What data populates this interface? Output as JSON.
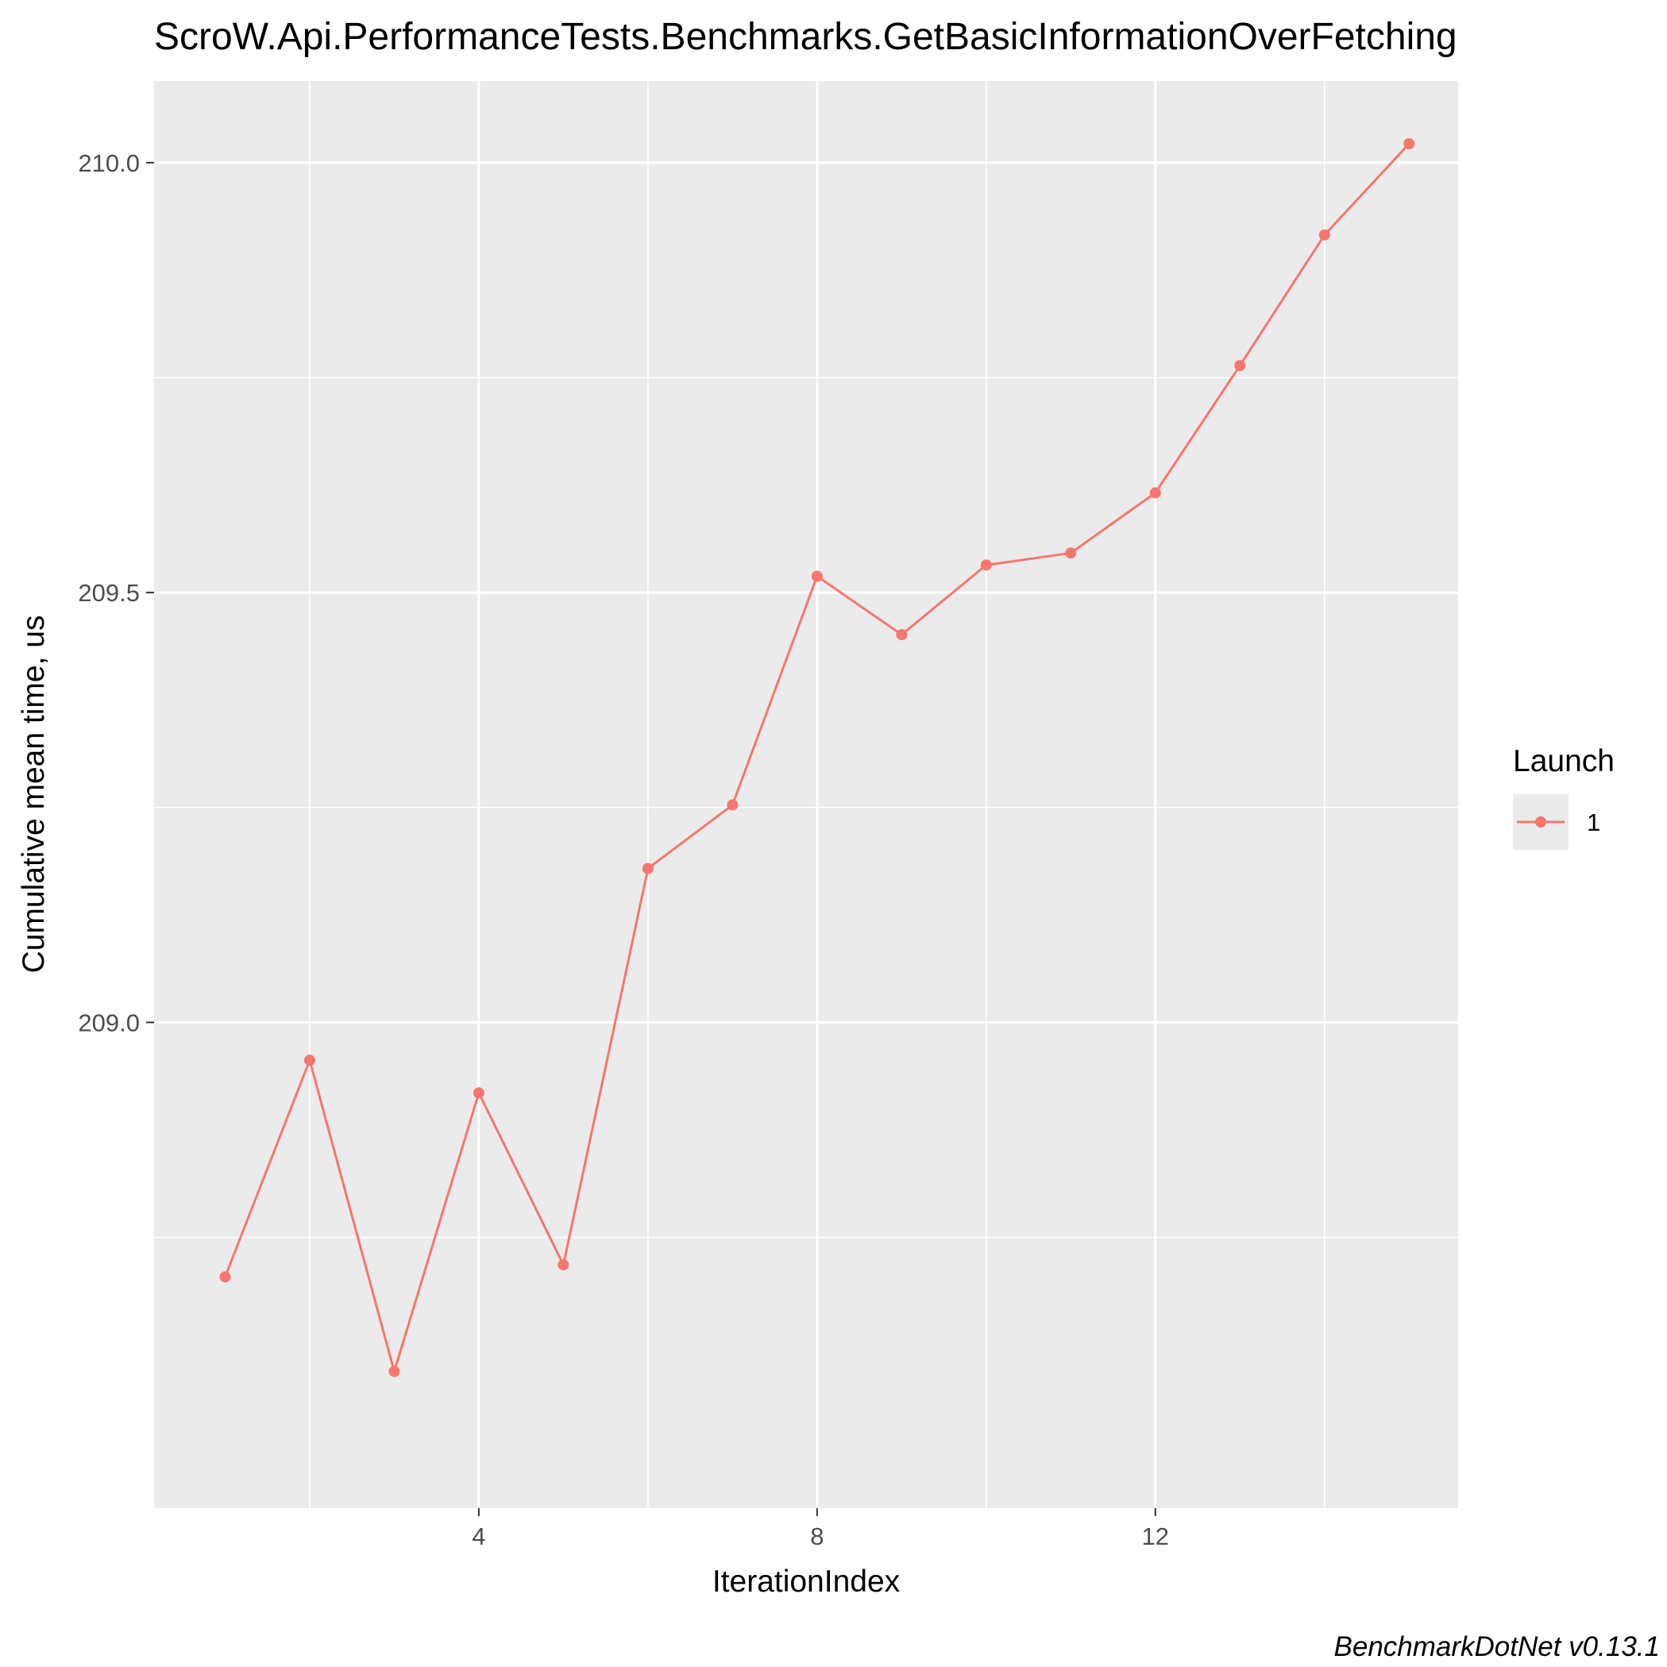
{
  "chart_data": {
    "type": "line",
    "title": "ScroW.Api.PerformanceTests.Benchmarks.GetBasicInformationOverFetching",
    "xlabel": "IterationIndex",
    "ylabel": "Cumulative mean time, us",
    "caption": "BenchmarkDotNet v0.13.1",
    "x": [
      1,
      2,
      3,
      4,
      5,
      6,
      7,
      8,
      9,
      10,
      11,
      12,
      13,
      14,
      15
    ],
    "series": [
      {
        "name": "1",
        "values": [
          208.704,
          208.956,
          208.594,
          208.918,
          208.718,
          209.179,
          209.253,
          209.519,
          209.451,
          209.532,
          209.546,
          209.616,
          209.764,
          209.916,
          210.022
        ]
      }
    ],
    "xlim": [
      0.16,
      15.58
    ],
    "ylim": [
      208.435,
      210.095
    ],
    "x_ticks": [
      4,
      8,
      12
    ],
    "x_tick_labels": [
      "4",
      "8",
      "12"
    ],
    "y_ticks": [
      209.0,
      209.5,
      210.0
    ],
    "y_tick_labels": [
      "209.0",
      "209.5",
      "210.0"
    ],
    "grid": true,
    "legend": {
      "title": "Launch",
      "placement": "right",
      "entries": [
        "1"
      ]
    },
    "colors": {
      "series": "#f8766d",
      "panel_background": "#ebebeb",
      "grid": "#ffffff",
      "tick_label": "#4d4d4d"
    }
  }
}
